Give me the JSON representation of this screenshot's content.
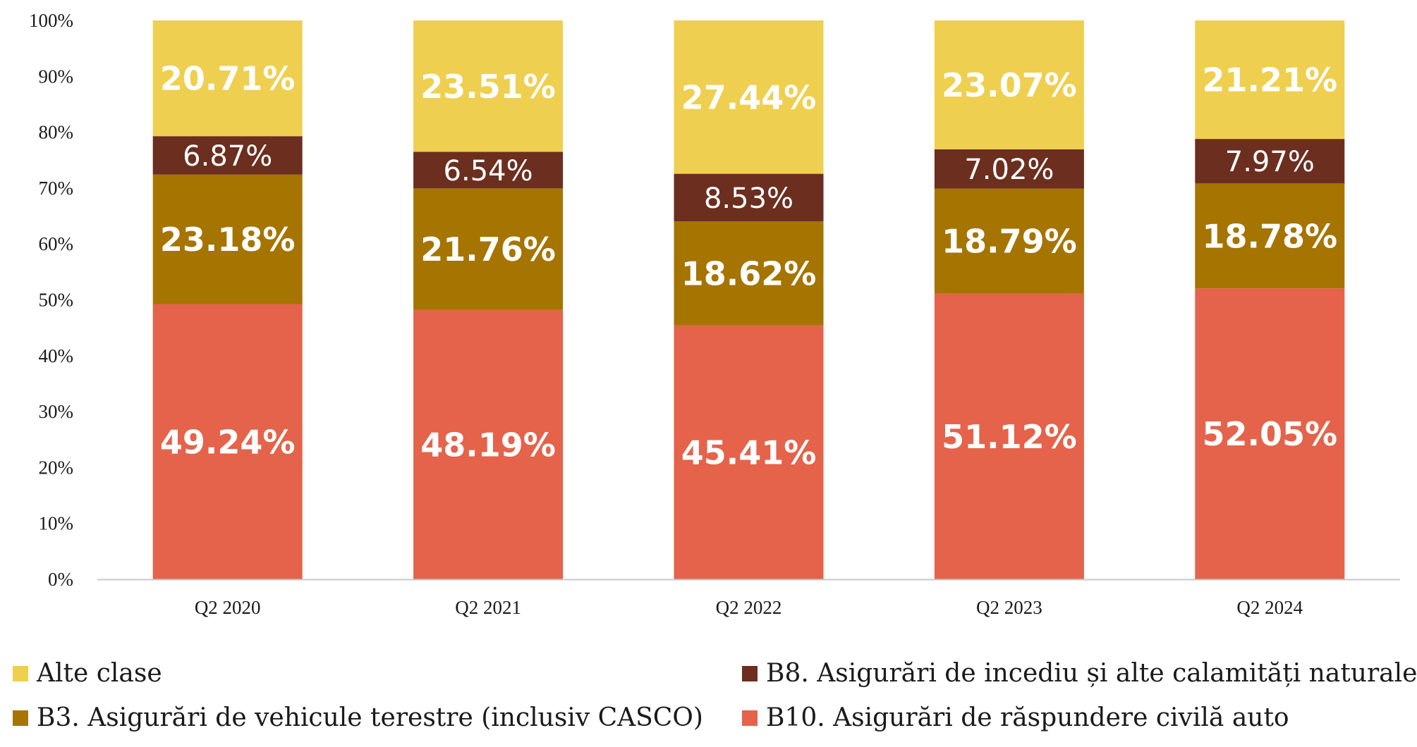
{
  "chart_data": {
    "type": "bar",
    "stacked": true,
    "percent_stacked": true,
    "categories": [
      "Q2 2020",
      "Q2 2021",
      "Q2 2022",
      "Q2 2023",
      "Q2 2024"
    ],
    "series": [
      {
        "name": "B10. Asigurări de răspundere civilă auto",
        "color": "#e4634a",
        "values": [
          49.24,
          48.19,
          45.41,
          51.12,
          52.05
        ],
        "labels": [
          "49.24%",
          "48.19%",
          "45.41%",
          "51.12%",
          "52.05%"
        ]
      },
      {
        "name": "B3. Asigurări de vehicule terestre (inclusiv CASCO)",
        "color": "#a67400",
        "values": [
          23.18,
          21.76,
          18.62,
          18.79,
          18.78
        ],
        "labels": [
          "23.18%",
          "21.76%",
          "18.62%",
          "18.79%",
          "18.78%"
        ]
      },
      {
        "name": "B8. Asigurări de incediu și alte calamități naturale",
        "color": "#6b2e1f",
        "values": [
          6.87,
          6.54,
          8.53,
          7.02,
          7.97
        ],
        "labels": [
          "6.87%",
          "6.54%",
          "8.53%",
          "7.02%",
          "7.97%"
        ]
      },
      {
        "name": "Alte clase",
        "color": "#efcf4f",
        "values": [
          20.71,
          23.51,
          27.44,
          23.07,
          21.21
        ],
        "labels": [
          "20.71%",
          "23.51%",
          "27.44%",
          "23.07%",
          "21.21%"
        ]
      }
    ],
    "ylim": [
      0,
      100
    ],
    "yticks": [
      "0%",
      "10%",
      "20%",
      "30%",
      "40%",
      "50%",
      "60%",
      "70%",
      "80%",
      "90%",
      "100%"
    ],
    "title": "",
    "xlabel": "",
    "ylabel": "",
    "grid": false,
    "legend_position": "bottom"
  },
  "legend": {
    "alte": "Alte clase",
    "b8": "B8. Asigurări de incediu și alte calamități naturale",
    "b3": "B3. Asigurări de vehicule terestre (inclusiv CASCO)",
    "b10": "B10. Asigurări de răspundere civilă auto"
  }
}
